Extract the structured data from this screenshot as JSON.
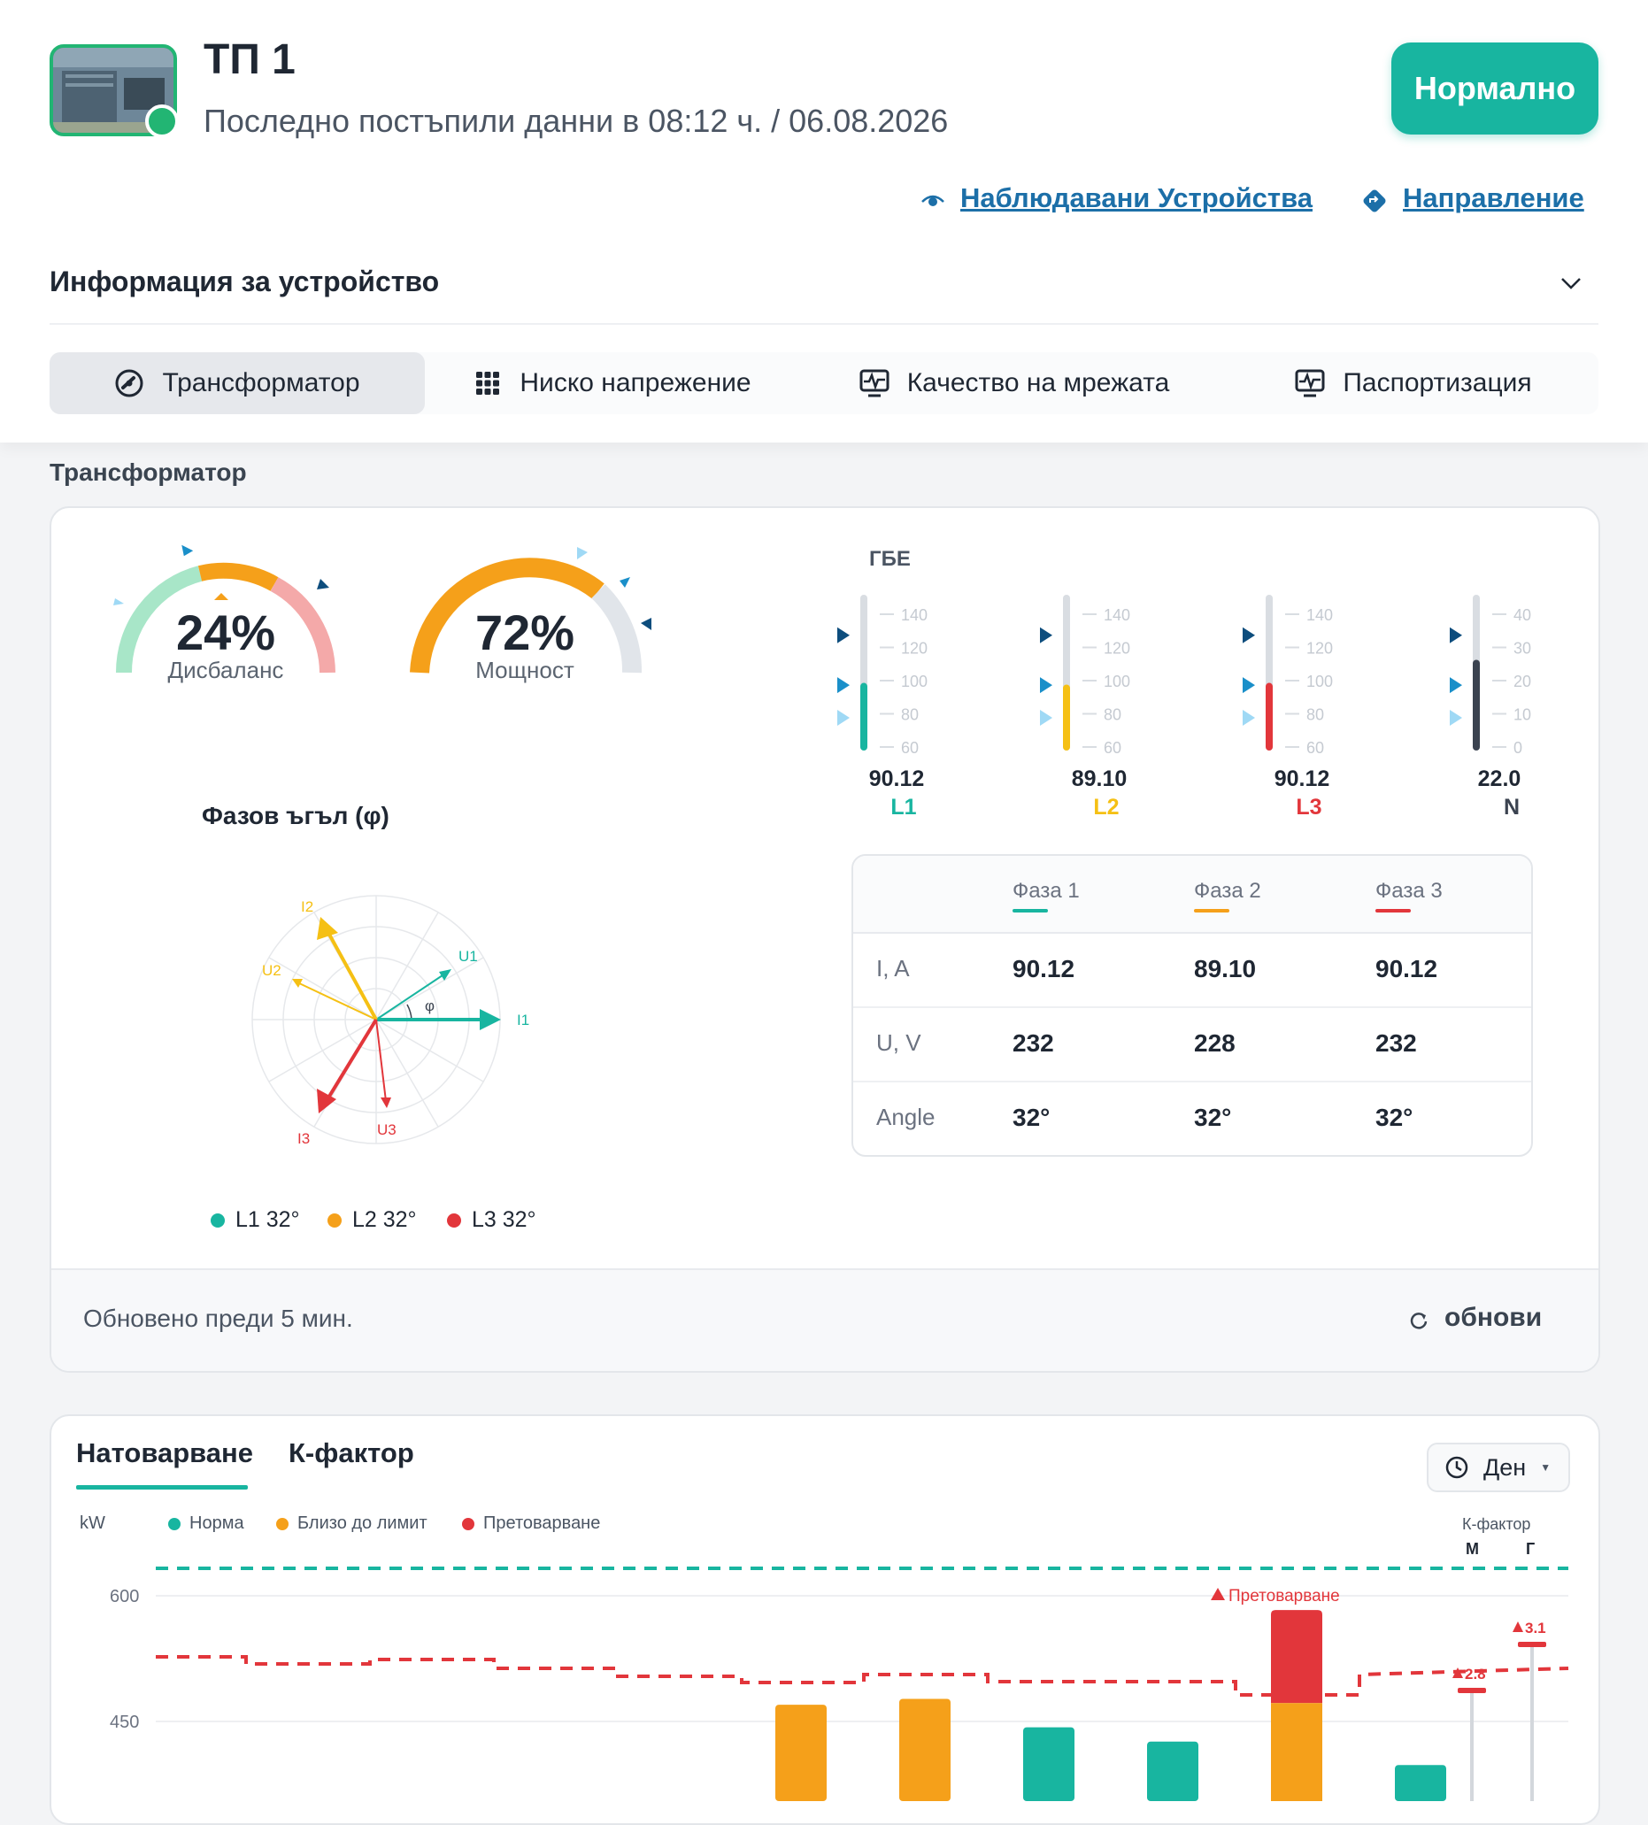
{
  "device": {
    "title": "ТП 1",
    "last_data": "Последно постъпили данни в 08:12 ч. / 06.08.2026",
    "status": "Нормално"
  },
  "links": {
    "watched": "Наблюдавани Устройства",
    "direction": "Направление"
  },
  "info_section": {
    "title": "Информация за устройство"
  },
  "tabs": [
    {
      "label": "Трансформатор",
      "icon": "gauge-icon",
      "active": true
    },
    {
      "label": "Ниско напрежение",
      "icon": "grid-icon",
      "active": false
    },
    {
      "label": "Качество на мрежата",
      "icon": "pulse-icon",
      "active": false
    },
    {
      "label": "Паспортизация",
      "icon": "pulse-icon",
      "active": false
    }
  ],
  "transformer": {
    "heading": "Трансформатор",
    "gauges": [
      {
        "value": "24%",
        "label": "Дисбаланс",
        "percent": 24
      },
      {
        "value": "72%",
        "label": "Мощност",
        "percent": 72
      }
    ],
    "gbe": {
      "title": "ГБЕ",
      "meters": [
        {
          "name": "L1",
          "value": "90.12",
          "color": "#18b5a0",
          "ticks": [
            "140",
            "120",
            "100",
            "80",
            "60"
          ],
          "fill": 90.12,
          "min": 60,
          "max": 140
        },
        {
          "name": "L2",
          "value": "89.10",
          "color": "#f5c014",
          "ticks": [
            "140",
            "120",
            "100",
            "80",
            "60"
          ],
          "fill": 89.1,
          "min": 60,
          "max": 140
        },
        {
          "name": "L3",
          "value": "90.12",
          "color": "#e2363b",
          "ticks": [
            "140",
            "120",
            "100",
            "80",
            "60"
          ],
          "fill": 90.12,
          "min": 60,
          "max": 140
        },
        {
          "name": "N",
          "value": "22.0",
          "color": "#3b4350",
          "ticks": [
            "40",
            "30",
            "20",
            "10",
            "0"
          ],
          "fill": 22.0,
          "min": 0,
          "max": 40
        }
      ]
    },
    "phase_angle": {
      "title": "Фазов ъгъл (φ)",
      "phi_label": "φ",
      "vectors": [
        "I1",
        "U1",
        "I2",
        "U2",
        "I3",
        "U3"
      ],
      "legend": [
        {
          "label": "L1 32°",
          "color": "#18b5a0"
        },
        {
          "label": "L2 32°",
          "color": "#f5a01a"
        },
        {
          "label": "L3 32°",
          "color": "#e2363b"
        }
      ]
    },
    "table": {
      "headers": [
        "Фаза 1",
        "Фаза 2",
        "Фаза 3"
      ],
      "header_colors": [
        "#18b5a0",
        "#f5a01a",
        "#e2363b"
      ],
      "rows": [
        {
          "label": "I, A",
          "values": [
            "90.12",
            "89.10",
            "90.12"
          ]
        },
        {
          "label": "U, V",
          "values": [
            "232",
            "228",
            "232"
          ]
        },
        {
          "label": "Angle",
          "values": [
            "32°",
            "32°",
            "32°"
          ]
        }
      ]
    },
    "updated": "Обновено преди 5 мин.",
    "refresh": "обнови"
  },
  "load_chart": {
    "tabs": [
      "Натоварване",
      "К-фактор"
    ],
    "range": "Ден",
    "colors": {
      "norm": "#18b5a0",
      "near": "#f5a01a",
      "over": "#e2363b"
    },
    "chart_data": {
      "type": "bar",
      "ylabel": "kW",
      "y_ticks": [
        "600",
        "450"
      ],
      "legend": [
        "Норма",
        "Близо до лимит",
        "Претоварване"
      ],
      "values": [
        470,
        477,
        443,
        426,
        583,
        398
      ],
      "levels": [
        "near",
        "near",
        "norm",
        "norm",
        "over",
        "norm"
      ],
      "limit_threshold": 472,
      "annotation": "Претоварване",
      "k_factor": {
        "title": "К-фактор",
        "columns": [
          "М",
          "Г"
        ],
        "values": [
          "2.8",
          "3.1"
        ]
      }
    }
  }
}
